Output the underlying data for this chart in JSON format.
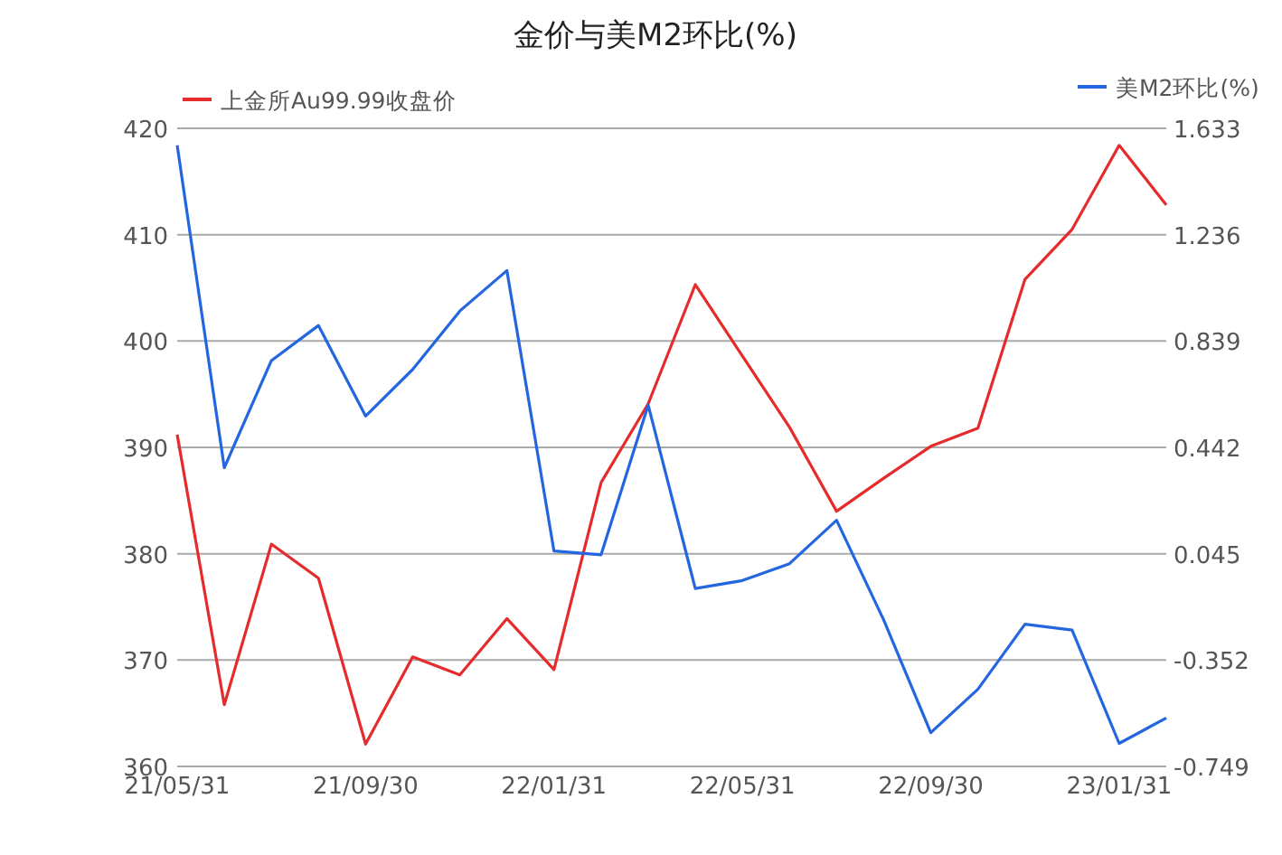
{
  "chart_data": {
    "type": "line",
    "title": "金价与美M2环比(%)",
    "categories": [
      "21/05/31",
      null,
      null,
      null,
      "21/09/30",
      null,
      null,
      null,
      "22/01/31",
      null,
      null,
      null,
      "22/05/31",
      null,
      null,
      null,
      "22/09/30",
      null,
      null,
      null,
      "23/01/31",
      null
    ],
    "series": [
      {
        "name": "上金所Au99.99收盘价",
        "color": "#e52b2b",
        "values": [
          391.2,
          365.8,
          380.9,
          377.7,
          362.1,
          370.3,
          368.6,
          373.9,
          369.1,
          386.7,
          394.1,
          405.3,
          398.6,
          391.9,
          384.0,
          387.1,
          390.1,
          391.8,
          405.8,
          410.5,
          418.4,
          412.8
        ]
      },
      {
        "name": "美M2环比(%)",
        "color": "#2366e0",
        "axis": "y2",
        "values": [
          1.57,
          0.366,
          0.766,
          0.897,
          0.559,
          0.733,
          0.951,
          1.102,
          0.055,
          0.041,
          0.6,
          -0.085,
          -0.055,
          0.008,
          0.17,
          -0.202,
          -0.623,
          -0.461,
          -0.218,
          -0.24,
          -0.663,
          -0.568
        ]
      }
    ],
    "ylim": [
      360,
      420
    ],
    "yticks": [
      360,
      370,
      380,
      390,
      400,
      410,
      420
    ],
    "y2lim": [
      -0.749,
      1.633
    ],
    "y2ticks": [
      -0.749,
      -0.352,
      0.045,
      0.442,
      0.839,
      1.236,
      1.633
    ],
    "grid": "y",
    "legend": "top",
    "marker": "none",
    "line_style": "solid"
  }
}
